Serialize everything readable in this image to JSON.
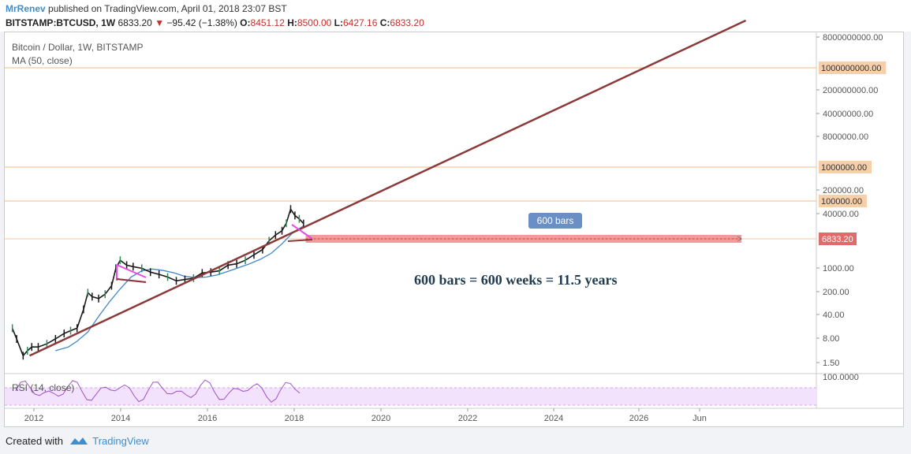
{
  "header": {
    "author": "MrRenev",
    "published_text": "published on TradingView.com, April 01, 2018 23:07 BST",
    "symbol": "BITSTAMP:BTCUSD, 1W",
    "price": "6833.20",
    "change": "−95.42 (−1.38%)",
    "open_label": "O:",
    "open": "8451.12",
    "high_label": "H:",
    "high": "8500.00",
    "low_label": "L:",
    "low": "6427.16",
    "close_label": "C:",
    "close": "6833.20"
  },
  "legend": {
    "title": "Bitcoin / Dollar, 1W, BITSTAMP",
    "ma": "MA (50, close)",
    "rsi": "RSI (14, close)"
  },
  "annotation": "600 bars = 600 weeks = 11.5 years",
  "bars_label": "600 bars",
  "footer": {
    "created_with": "Created with",
    "brand": "TradingView"
  },
  "colors": {
    "candles": "#1a1a1a",
    "ma": "#3d86c9",
    "trendline": "#8b3a3a",
    "hlines": "#f5c59c",
    "triangle": "#e84ce0",
    "range": "#f08a8a",
    "bars_badge": "#6a8fc4",
    "price_label": "#e06b6b",
    "level_label": "#f7cfa9",
    "rsi_band": "#f3e2fb"
  },
  "chart_data": {
    "type": "line",
    "scale": "log",
    "x_ticks": [
      "2012",
      "2014",
      "2016",
      "2018",
      "2020",
      "2022",
      "2024",
      "2026",
      "Jun"
    ],
    "y_ticks": [
      "8000000000.00",
      "200000000.00",
      "40000000.00",
      "8000000.00",
      "200000.00",
      "40000.00",
      "1000.00",
      "200.00",
      "40.00",
      "8.00",
      "1.50"
    ],
    "highlighted_levels": [
      "1000000000.00",
      "1000000.00",
      "100000.00"
    ],
    "current_price_label": "6833.20",
    "rsi_tick": "100.0000",
    "price_series": {
      "x": [
        2011.5,
        2011.6,
        2011.75,
        2011.85,
        2011.95,
        2012.1,
        2012.3,
        2012.5,
        2012.7,
        2012.85,
        2013.0,
        2013.15,
        2013.25,
        2013.35,
        2013.5,
        2013.65,
        2013.8,
        2013.9,
        2014.0,
        2014.15,
        2014.3,
        2014.5,
        2014.7,
        2014.9,
        2015.1,
        2015.3,
        2015.5,
        2015.7,
        2015.9,
        2016.1,
        2016.3,
        2016.5,
        2016.7,
        2016.9,
        2017.1,
        2017.3,
        2017.45,
        2017.6,
        2017.75,
        2017.85,
        2017.95,
        2018.05,
        2018.15,
        2018.25
      ],
      "y": [
        15,
        8,
        3,
        4,
        5,
        5,
        6,
        8,
        11,
        13,
        15,
        45,
        120,
        95,
        85,
        110,
        180,
        500,
        800,
        600,
        550,
        500,
        400,
        350,
        300,
        240,
        260,
        280,
        380,
        400,
        430,
        600,
        650,
        800,
        1100,
        1500,
        2500,
        3500,
        4500,
        7000,
        16000,
        11000,
        9000,
        6833
      ]
    },
    "ma_series": {
      "x": [
        2012.5,
        2012.8,
        2013.0,
        2013.25,
        2013.5,
        2013.75,
        2014.0,
        2014.25,
        2014.5,
        2014.75,
        2015.0,
        2015.25,
        2015.5,
        2015.75,
        2016.0,
        2016.25,
        2016.5,
        2016.75,
        2017.0,
        2017.25,
        2017.5,
        2017.75,
        2018.0,
        2018.25
      ],
      "y": [
        4,
        5,
        7,
        12,
        30,
        70,
        150,
        300,
        430,
        480,
        440,
        380,
        310,
        290,
        300,
        340,
        420,
        520,
        650,
        850,
        1200,
        2100,
        4000,
        6000
      ]
    },
    "trendline": {
      "from": {
        "x": 2011.9,
        "y": 3
      },
      "to": {
        "x": 2028.5,
        "y": 1000000000
      }
    },
    "range_box": {
      "from_x": 2018.3,
      "to_x": 2028.4,
      "bars": 600,
      "price": 6833.2
    },
    "rsi": {
      "ylim": [
        0,
        100
      ],
      "band": [
        30,
        70
      ]
    }
  }
}
